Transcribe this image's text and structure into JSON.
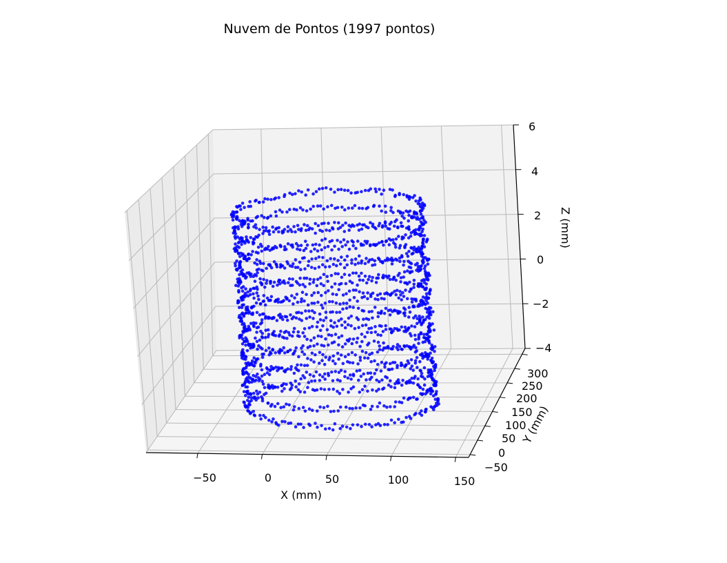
{
  "chart_data": {
    "type": "scatter",
    "title": "Nuvem de Pontos (1997 pontos)",
    "xlabel": "X (mm)",
    "ylabel": "Y (mm)",
    "zlabel": "Z (mm)",
    "x_ticks": [
      "−50",
      "0",
      "50",
      "100",
      "150"
    ],
    "y_ticks": [
      "−50",
      "0",
      "50",
      "100",
      "150",
      "200",
      "250",
      "300"
    ],
    "z_ticks": [
      "−4",
      "−2",
      "0",
      "2",
      "4",
      "6"
    ],
    "xlim": [
      -90,
      160
    ],
    "ylim": [
      -60,
      320
    ],
    "zlim": [
      -4,
      6
    ],
    "grid": true,
    "marker_color": "#0000ff",
    "point_count": 1997,
    "shape": "cylinder",
    "cylinder": {
      "center_x": 37,
      "center_y": 130,
      "radius": 75,
      "z_min": -4,
      "z_max": 4.2,
      "ring_count": 12,
      "points_per_ring": 166
    }
  }
}
